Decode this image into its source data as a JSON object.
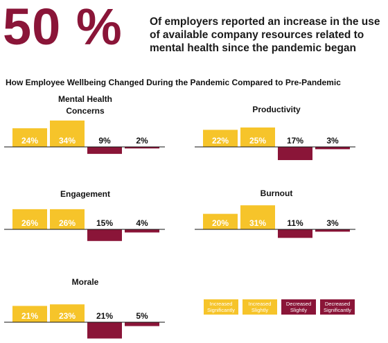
{
  "headline": {
    "stat": "50 %",
    "text": "Of employers reported an increase in the use of available company resources related to mental health since the pandemic began"
  },
  "chart_title": "How Employee Wellbeing Changed During the Pandemic Compared to Pre-Pandemic",
  "colors": {
    "increase": "#f6c42a",
    "decrease": "#8a1538"
  },
  "chart_data": [
    {
      "type": "bar",
      "title": "Mental Health Concerns",
      "categories": [
        "Increased Significantly",
        "Increased Slightly",
        "Decreased Slightly",
        "Decreased Significantly"
      ],
      "values": [
        24,
        34,
        9,
        2
      ],
      "labels": [
        "24%",
        "34%",
        "9%",
        "2%"
      ],
      "direction": [
        "up",
        "up",
        "down",
        "down"
      ]
    },
    {
      "type": "bar",
      "title": "Productivity",
      "categories": [
        "Increased Significantly",
        "Increased Slightly",
        "Decreased Slightly",
        "Decreased Significantly"
      ],
      "values": [
        22,
        25,
        17,
        3
      ],
      "labels": [
        "22%",
        "25%",
        "17%",
        "3%"
      ],
      "direction": [
        "up",
        "up",
        "down",
        "down"
      ]
    },
    {
      "type": "bar",
      "title": "Engagement",
      "categories": [
        "Increased Significantly",
        "Increased Slightly",
        "Decreased Slightly",
        "Decreased Significantly"
      ],
      "values": [
        26,
        26,
        15,
        4
      ],
      "labels": [
        "26%",
        "26%",
        "15%",
        "4%"
      ],
      "direction": [
        "up",
        "up",
        "down",
        "down"
      ]
    },
    {
      "type": "bar",
      "title": "Burnout",
      "categories": [
        "Increased Significantly",
        "Increased Slightly",
        "Decreased Slightly",
        "Decreased Significantly"
      ],
      "values": [
        20,
        31,
        11,
        3
      ],
      "labels": [
        "20%",
        "31%",
        "11%",
        "3%"
      ],
      "direction": [
        "up",
        "up",
        "down",
        "down"
      ]
    },
    {
      "type": "bar",
      "title": "Morale",
      "categories": [
        "Increased Significantly",
        "Increased Slightly",
        "Decreased Slightly",
        "Decreased Significantly"
      ],
      "values": [
        21,
        23,
        21,
        5
      ],
      "labels": [
        "21%",
        "23%",
        "21%",
        "5%"
      ],
      "direction": [
        "up",
        "up",
        "down",
        "down"
      ]
    }
  ],
  "legend": [
    {
      "label": "Increased Significantly",
      "color": "#f6c42a"
    },
    {
      "label": "Increased Slightly",
      "color": "#f6c42a"
    },
    {
      "label": "Decreased Slightly",
      "color": "#8a1538"
    },
    {
      "label": "Decreased Significantly",
      "color": "#8a1538"
    }
  ]
}
